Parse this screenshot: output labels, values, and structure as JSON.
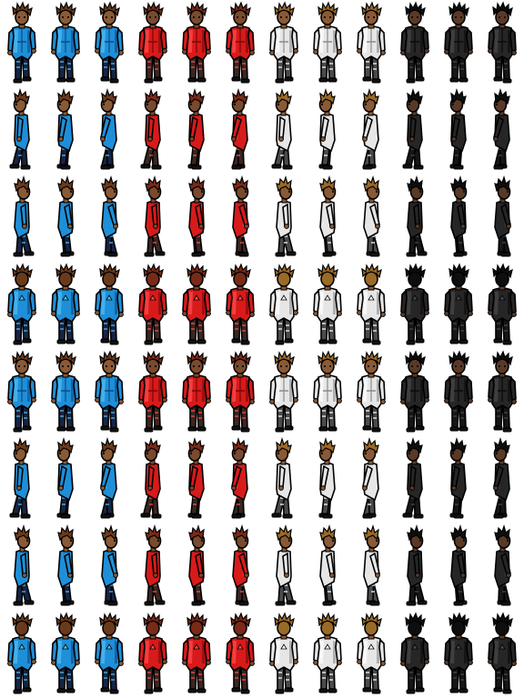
{
  "sprite_sheet": {
    "columns_per_variant": 3,
    "rows": 8,
    "variants": [
      {
        "name": "blue",
        "coat": "#1e8fd8",
        "coat_light": "#54bff2",
        "coat_dark": "#0d4a86",
        "pants": "#162444",
        "hair": "#6b3a1c",
        "skin": "#8a5a36"
      },
      {
        "name": "red",
        "coat": "#d81a1a",
        "coat_light": "#ff5050",
        "coat_dark": "#7a0808",
        "pants": "#3a2620",
        "hair": "#7a2a18",
        "skin": "#7a4a2e"
      },
      {
        "name": "white",
        "coat": "#e6e6e6",
        "coat_light": "#ffffff",
        "coat_dark": "#8c8c8c",
        "pants": "#4a4a4a",
        "hair": "#9a6a28",
        "skin": "#8a5a36"
      },
      {
        "name": "black",
        "coat": "#262626",
        "coat_light": "#4a4a4a",
        "coat_dark": "#0a0a0a",
        "pants": "#161616",
        "hair": "#0e0e0e",
        "skin": "#5a3a26"
      }
    ],
    "row_directions": [
      "front",
      "walk-left",
      "walk-right",
      "back",
      "front",
      "walk-left",
      "walk-right",
      "back"
    ]
  }
}
